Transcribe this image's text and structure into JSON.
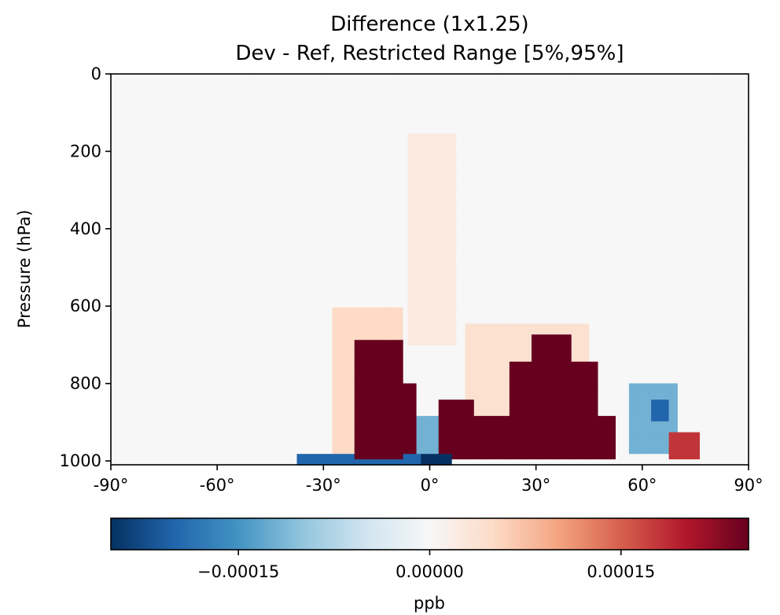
{
  "chart_data": {
    "type": "heatmap",
    "title_line1": "Difference (1x1.25)",
    "title_line2": "Dev - Ref, Restricted Range [5%,95%]",
    "ylabel": "Pressure (hPa)",
    "colorbar_label": "ppb",
    "xlim": [
      -90,
      90
    ],
    "ylim": [
      1010,
      0
    ],
    "x_ticks": [
      {
        "value": -90,
        "label": "-90°"
      },
      {
        "value": -60,
        "label": "-60°"
      },
      {
        "value": -30,
        "label": "-30°"
      },
      {
        "value": 0,
        "label": "0°"
      },
      {
        "value": 30,
        "label": "30°"
      },
      {
        "value": 60,
        "label": "60°"
      },
      {
        "value": 90,
        "label": "90°"
      }
    ],
    "y_ticks": [
      {
        "value": 0,
        "label": "0"
      },
      {
        "value": 200,
        "label": "200"
      },
      {
        "value": 400,
        "label": "400"
      },
      {
        "value": 600,
        "label": "600"
      },
      {
        "value": 800,
        "label": "800"
      },
      {
        "value": 1000,
        "label": "1000"
      }
    ],
    "colorbar": {
      "colormap": "RdBu_r",
      "range": [
        -0.00025,
        0.00025
      ],
      "ticks": [
        {
          "value": -0.00015,
          "label": "−0.00015"
        },
        {
          "value": 0.0,
          "label": "0.00000"
        },
        {
          "value": 0.00015,
          "label": "0.00015"
        }
      ]
    },
    "features": [
      {
        "lat": [
          -21,
          -8
        ],
        "pressure": [
          690,
          990
        ],
        "value": 0.0003
      },
      {
        "lat": [
          -19,
          -4
        ],
        "pressure": [
          800,
          985
        ],
        "value": 0.0003
      },
      {
        "lat": [
          9,
          52
        ],
        "pressure": [
          880,
          1000
        ],
        "value": 0.0003
      },
      {
        "lat": [
          29,
          40
        ],
        "pressure": [
          680,
          990
        ],
        "value": 0.0003
      },
      {
        "lat": [
          23,
          47
        ],
        "pressure": [
          740,
          990
        ],
        "value": 0.0003
      },
      {
        "lat": [
          3,
          12
        ],
        "pressure": [
          840,
          995
        ],
        "value": 0.00025
      },
      {
        "lat": [
          -38,
          -3
        ],
        "pressure": [
          985,
          1010
        ],
        "value": -0.0002
      },
      {
        "lat": [
          -2,
          6
        ],
        "pressure": [
          975,
          1010
        ],
        "value": -0.00028
      },
      {
        "lat": [
          -5,
          3
        ],
        "pressure": [
          880,
          975
        ],
        "value": -0.00012
      },
      {
        "lat": [
          56,
          70
        ],
        "pressure": [
          800,
          980
        ],
        "value": -0.00012
      },
      {
        "lat": [
          62,
          68
        ],
        "pressure": [
          840,
          900
        ],
        "value": -0.0002
      },
      {
        "lat": [
          68,
          76
        ],
        "pressure": [
          920,
          1000
        ],
        "value": 0.00018
      },
      {
        "lat": [
          -28,
          -8
        ],
        "pressure": [
          600,
          990
        ],
        "value": 5e-05
      },
      {
        "lat": [
          10,
          45
        ],
        "pressure": [
          650,
          990
        ],
        "value": 4e-05
      },
      {
        "lat": [
          -6,
          8
        ],
        "pressure": [
          150,
          700
        ],
        "value": 2.5e-05
      }
    ]
  }
}
